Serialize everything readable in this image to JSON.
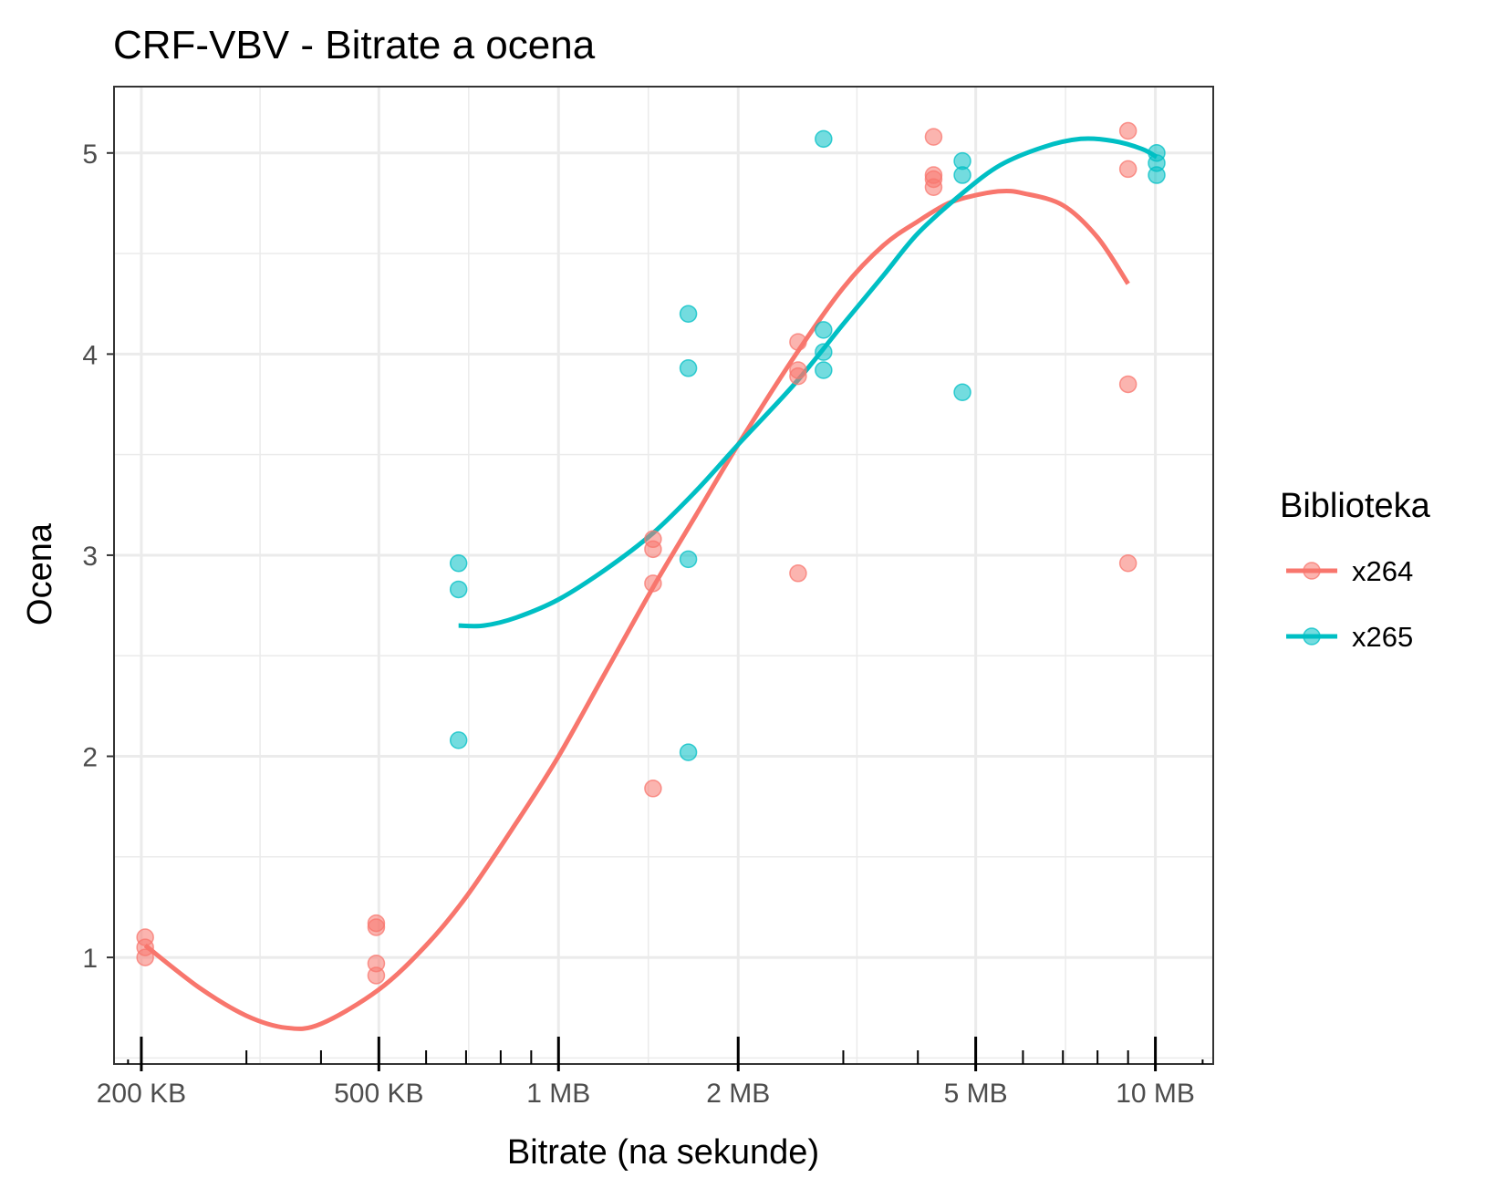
{
  "chart_data": {
    "type": "scatter",
    "title": "CRF-VBV - Bitrate a ocena",
    "xlabel": "Bitrate  (na sekunde)",
    "ylabel": "Ocena",
    "x_scale": "log10",
    "x_unit": "kilobytes per second",
    "xlim": [
      180,
      12500
    ],
    "ylim": [
      0.47,
      5.33
    ],
    "x_ticks": [
      {
        "value": 200,
        "label": "200 KB"
      },
      {
        "value": 500,
        "label": "500 KB"
      },
      {
        "value": 1000,
        "label": "1 MB"
      },
      {
        "value": 2000,
        "label": "2 MB"
      },
      {
        "value": 5000,
        "label": "5 MB"
      },
      {
        "value": 10000,
        "label": "10 MB"
      }
    ],
    "y_ticks": [
      {
        "value": 1,
        "label": "1"
      },
      {
        "value": 2,
        "label": "2"
      },
      {
        "value": 3,
        "label": "3"
      },
      {
        "value": 4,
        "label": "4"
      },
      {
        "value": 5,
        "label": "5"
      }
    ],
    "grid": true,
    "legend": {
      "title": "Biblioteka",
      "placement": "right"
    },
    "series": [
      {
        "name": "x264",
        "color": "#f8766d",
        "points": [
          [
            203,
            1.1
          ],
          [
            203,
            1.05
          ],
          [
            203,
            1.0
          ],
          [
            495,
            1.17
          ],
          [
            495,
            1.15
          ],
          [
            495,
            0.97
          ],
          [
            495,
            0.91
          ],
          [
            1440,
            3.08
          ],
          [
            1440,
            3.03
          ],
          [
            1440,
            2.86
          ],
          [
            1440,
            1.84
          ],
          [
            2520,
            4.06
          ],
          [
            2520,
            3.92
          ],
          [
            2520,
            3.89
          ],
          [
            2520,
            2.91
          ],
          [
            4250,
            5.08
          ],
          [
            4250,
            4.89
          ],
          [
            4250,
            4.87
          ],
          [
            4250,
            4.83
          ],
          [
            9000,
            5.11
          ],
          [
            9000,
            4.92
          ],
          [
            9000,
            3.85
          ],
          [
            9000,
            2.96
          ]
        ],
        "trend": [
          [
            203,
            1.06
          ],
          [
            250,
            0.85
          ],
          [
            300,
            0.71
          ],
          [
            350,
            0.65
          ],
          [
            400,
            0.67
          ],
          [
            500,
            0.84
          ],
          [
            600,
            1.06
          ],
          [
            700,
            1.3
          ],
          [
            850,
            1.67
          ],
          [
            1000,
            2.0
          ],
          [
            1200,
            2.42
          ],
          [
            1440,
            2.84
          ],
          [
            1700,
            3.2
          ],
          [
            2000,
            3.55
          ],
          [
            2500,
            4.0
          ],
          [
            3000,
            4.33
          ],
          [
            3500,
            4.54
          ],
          [
            4000,
            4.66
          ],
          [
            4500,
            4.75
          ],
          [
            5000,
            4.79
          ],
          [
            5500,
            4.81
          ],
          [
            6000,
            4.8
          ],
          [
            7000,
            4.74
          ],
          [
            8000,
            4.58
          ],
          [
            9000,
            4.35
          ]
        ]
      },
      {
        "name": "x265",
        "color": "#00bfc4",
        "points": [
          [
            680,
            2.96
          ],
          [
            680,
            2.83
          ],
          [
            680,
            2.08
          ],
          [
            1650,
            4.2
          ],
          [
            1650,
            3.93
          ],
          [
            1650,
            2.98
          ],
          [
            1650,
            2.02
          ],
          [
            2780,
            5.07
          ],
          [
            2780,
            4.12
          ],
          [
            2780,
            4.01
          ],
          [
            2780,
            3.92
          ],
          [
            4750,
            4.96
          ],
          [
            4750,
            4.89
          ],
          [
            4750,
            3.81
          ],
          [
            10050,
            5.0
          ],
          [
            10050,
            4.95
          ],
          [
            10050,
            4.89
          ]
        ],
        "trend": [
          [
            680,
            2.65
          ],
          [
            750,
            2.65
          ],
          [
            850,
            2.69
          ],
          [
            1000,
            2.78
          ],
          [
            1200,
            2.93
          ],
          [
            1440,
            3.11
          ],
          [
            1700,
            3.32
          ],
          [
            2000,
            3.55
          ],
          [
            2500,
            3.86
          ],
          [
            3000,
            4.15
          ],
          [
            3500,
            4.39
          ],
          [
            4000,
            4.6
          ],
          [
            4750,
            4.8
          ],
          [
            5500,
            4.94
          ],
          [
            6500,
            5.03
          ],
          [
            7500,
            5.07
          ],
          [
            8500,
            5.06
          ],
          [
            9500,
            5.02
          ],
          [
            10050,
            4.98
          ]
        ]
      }
    ]
  }
}
